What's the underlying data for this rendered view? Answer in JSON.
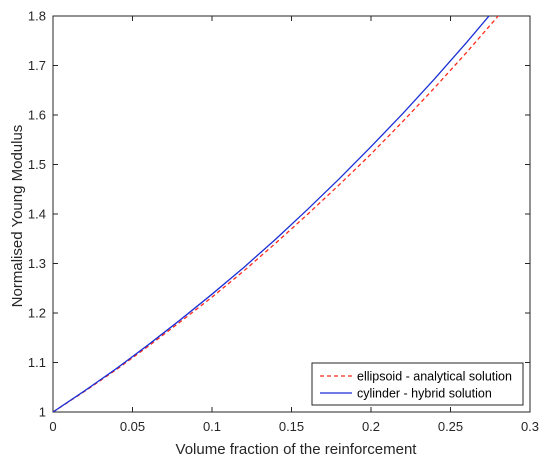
{
  "chart_data": {
    "type": "line",
    "title": "",
    "xlabel": "Volume fraction of the reinforcement",
    "ylabel": "Normalised Young Modulus",
    "xlim": [
      0,
      0.3
    ],
    "ylim": [
      1,
      1.8
    ],
    "xticks": [
      0,
      0.05,
      0.1,
      0.15,
      0.2,
      0.25,
      0.3
    ],
    "xtick_labels": [
      "0",
      "0.05",
      "0.1",
      "0.15",
      "0.2",
      "0.25",
      "0.3"
    ],
    "yticks": [
      1,
      1.1,
      1.2,
      1.3,
      1.4,
      1.5,
      1.6,
      1.7,
      1.8
    ],
    "ytick_labels": [
      "1",
      "1.1",
      "1.2",
      "1.3",
      "1.4",
      "1.5",
      "1.6",
      "1.7",
      "1.8"
    ],
    "grid": false,
    "legend_position": "bottom-right",
    "series": [
      {
        "name": "ellipsoid - analytical solution",
        "color": "#ff2a1a",
        "style": "dashed",
        "x": [
          0,
          0.02,
          0.04,
          0.06,
          0.08,
          0.1,
          0.12,
          0.14,
          0.16,
          0.18,
          0.2,
          0.22,
          0.24,
          0.26,
          0.28,
          0.29
        ],
        "y": [
          1.0,
          1.042,
          1.086,
          1.133,
          1.182,
          1.232,
          1.285,
          1.341,
          1.399,
          1.459,
          1.521,
          1.587,
          1.655,
          1.726,
          1.8,
          1.838
        ]
      },
      {
        "name": "cylinder - hybrid solution",
        "color": "#1a2fd6",
        "style": "solid",
        "x": [
          0,
          0.02,
          0.04,
          0.06,
          0.08,
          0.1,
          0.12,
          0.14,
          0.16,
          0.18,
          0.2,
          0.22,
          0.24,
          0.26,
          0.28,
          0.29
        ],
        "y": [
          1.0,
          1.043,
          1.088,
          1.136,
          1.186,
          1.238,
          1.292,
          1.349,
          1.409,
          1.471,
          1.536,
          1.603,
          1.673,
          1.746,
          1.822,
          1.861
        ]
      }
    ]
  }
}
